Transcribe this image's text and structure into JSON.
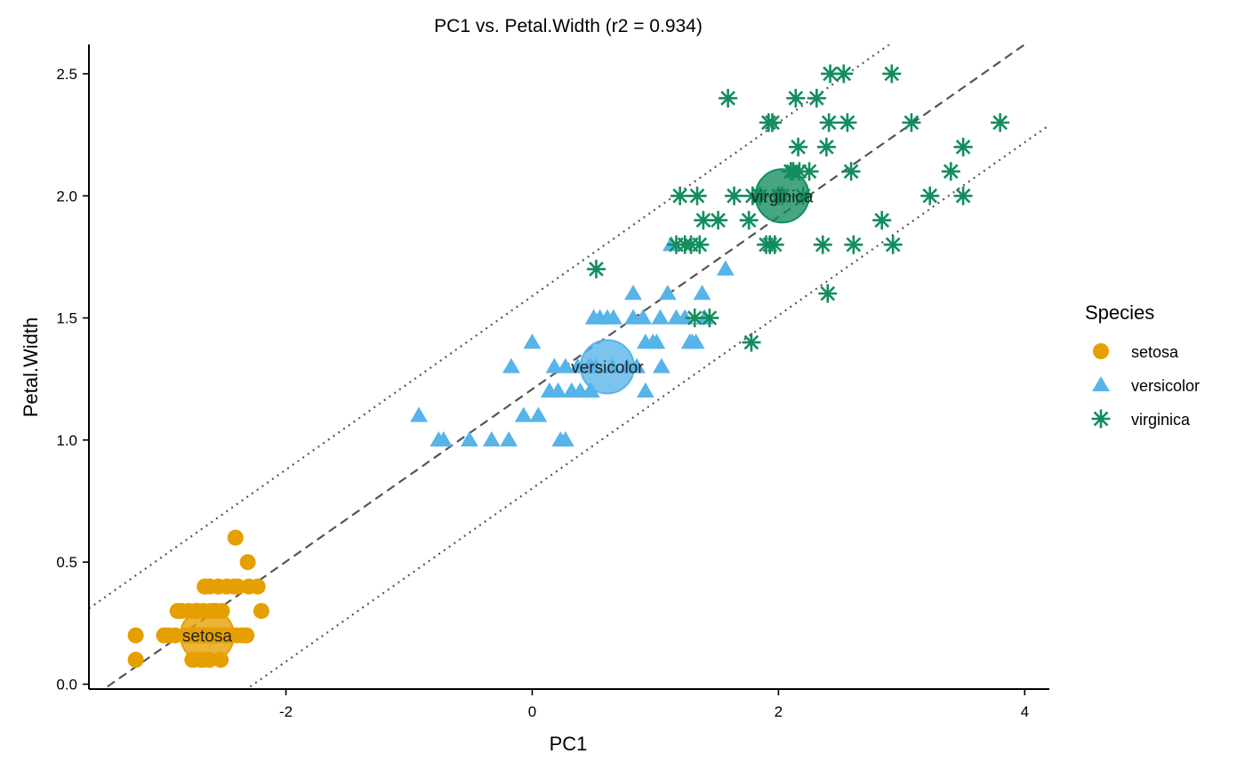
{
  "chart_data": {
    "type": "scatter",
    "title": "PC1 vs. Petal.Width (r2 = 0.934)",
    "xlabel": "PC1",
    "ylabel": "Petal.Width",
    "xlim": [
      -3.6,
      4.2
    ],
    "ylim": [
      -0.02,
      2.62
    ],
    "xticks": [
      -2,
      0,
      2,
      4
    ],
    "xtick_labels": [
      "-2",
      "0",
      "2",
      "4"
    ],
    "yticks": [
      0.0,
      0.5,
      1.0,
      1.5,
      2.0,
      2.5
    ],
    "ytick_labels": [
      "0.0",
      "0.5",
      "1.0",
      "1.5",
      "2.0",
      "2.5"
    ],
    "grid": false,
    "legend": {
      "title": "Species",
      "placement": "right"
    },
    "regression": {
      "style": "dashed",
      "color": "#555555",
      "line": [
        [
          -3.45,
          -0.01
        ],
        [
          4.0,
          2.62
        ]
      ],
      "upper_bound": [
        [
          -3.6,
          0.31
        ],
        [
          2.9,
          2.62
        ]
      ],
      "lower_bound": [
        [
          -2.29,
          -0.01
        ],
        [
          4.2,
          2.29
        ]
      ]
    },
    "series": [
      {
        "name": "setosa",
        "marker": "circle",
        "color": "#E69F00",
        "centroid": {
          "label": "setosa",
          "x": -2.64,
          "y": 0.2
        },
        "points": [
          [
            -3.22,
            0.2
          ],
          [
            -3.22,
            0.1
          ],
          [
            -2.99,
            0.2
          ],
          [
            -2.95,
            0.2
          ],
          [
            -2.85,
            0.3
          ],
          [
            -2.79,
            0.3
          ],
          [
            -2.77,
            0.2
          ],
          [
            -2.72,
            0.3
          ],
          [
            -2.71,
            0.2
          ],
          [
            -2.69,
            0.1
          ],
          [
            -2.67,
            0.3
          ],
          [
            -2.64,
            0.2
          ],
          [
            -2.61,
            0.3
          ],
          [
            -2.59,
            0.2
          ],
          [
            -2.57,
            0.3
          ],
          [
            -2.55,
            0.2
          ],
          [
            -2.52,
            0.3
          ],
          [
            -2.5,
            0.2
          ],
          [
            -2.67,
            0.1
          ],
          [
            -2.75,
            0.1
          ],
          [
            -2.62,
            0.1
          ],
          [
            -2.61,
            0.2
          ],
          [
            -2.74,
            0.2
          ],
          [
            -2.81,
            0.2
          ],
          [
            -2.48,
            0.2
          ],
          [
            -2.45,
            0.2
          ],
          [
            -2.4,
            0.2
          ],
          [
            -2.35,
            0.2
          ],
          [
            -2.32,
            0.2
          ],
          [
            -2.66,
            0.4
          ],
          [
            -2.55,
            0.4
          ],
          [
            -2.48,
            0.4
          ],
          [
            -2.42,
            0.4
          ],
          [
            -2.39,
            0.4
          ],
          [
            -2.3,
            0.4
          ],
          [
            -2.23,
            0.4
          ],
          [
            -2.2,
            0.3
          ],
          [
            -2.31,
            0.5
          ],
          [
            -2.41,
            0.6
          ],
          [
            -2.88,
            0.3
          ],
          [
            -2.7,
            0.2
          ],
          [
            -2.6,
            0.2
          ],
          [
            -2.9,
            0.2
          ],
          [
            -2.58,
            0.3
          ],
          [
            -2.65,
            0.2
          ],
          [
            -2.76,
            0.1
          ],
          [
            -2.68,
            0.2
          ],
          [
            -2.62,
            0.4
          ],
          [
            -2.53,
            0.1
          ],
          [
            -2.73,
            0.3
          ]
        ]
      },
      {
        "name": "versicolor",
        "marker": "triangle",
        "color": "#56B4E9",
        "centroid": {
          "label": "versicolor",
          "x": 0.61,
          "y": 1.3
        },
        "points": [
          [
            -0.92,
            1.1
          ],
          [
            -0.76,
            1.0
          ],
          [
            -0.72,
            1.0
          ],
          [
            -0.51,
            1.0
          ],
          [
            -0.33,
            1.0
          ],
          [
            -0.19,
            1.0
          ],
          [
            -0.17,
            1.3
          ],
          [
            0.0,
            1.4
          ],
          [
            -0.07,
            1.1
          ],
          [
            0.05,
            1.1
          ],
          [
            0.14,
            1.2
          ],
          [
            0.18,
            1.3
          ],
          [
            0.21,
            1.2
          ],
          [
            0.23,
            1.0
          ],
          [
            0.27,
            1.0
          ],
          [
            0.27,
            1.3
          ],
          [
            0.32,
            1.2
          ],
          [
            0.37,
            1.3
          ],
          [
            0.39,
            1.2
          ],
          [
            0.46,
            1.3
          ],
          [
            0.48,
            1.2
          ],
          [
            0.48,
            1.3
          ],
          [
            0.47,
            1.2
          ],
          [
            0.52,
            1.3
          ],
          [
            0.5,
            1.5
          ],
          [
            0.55,
            1.5
          ],
          [
            0.61,
            1.5
          ],
          [
            0.66,
            1.5
          ],
          [
            0.65,
            1.3
          ],
          [
            0.77,
            1.3
          ],
          [
            0.82,
            1.6
          ],
          [
            0.82,
            1.5
          ],
          [
            0.85,
            1.3
          ],
          [
            0.9,
            1.5
          ],
          [
            0.92,
            1.4
          ],
          [
            0.92,
            1.2
          ],
          [
            0.98,
            1.4
          ],
          [
            1.01,
            1.4
          ],
          [
            1.04,
            1.5
          ],
          [
            1.05,
            1.3
          ],
          [
            1.1,
            1.6
          ],
          [
            1.24,
            1.5
          ],
          [
            1.13,
            1.8
          ],
          [
            1.28,
            1.4
          ],
          [
            1.3,
            1.4
          ],
          [
            1.33,
            1.4
          ],
          [
            1.38,
            1.6
          ],
          [
            1.4,
            1.5
          ],
          [
            1.57,
            1.7
          ],
          [
            1.17,
            1.5
          ]
        ]
      },
      {
        "name": "virginica",
        "marker": "asterisk",
        "color": "#138D5E",
        "centroid": {
          "label": "virginica",
          "x": 2.03,
          "y": 2.0
        },
        "points": [
          [
            0.52,
            1.7
          ],
          [
            1.17,
            1.8
          ],
          [
            1.2,
            2.0
          ],
          [
            1.24,
            1.8
          ],
          [
            1.29,
            1.8
          ],
          [
            1.32,
            1.5
          ],
          [
            1.34,
            2.0
          ],
          [
            1.36,
            1.8
          ],
          [
            1.39,
            1.9
          ],
          [
            1.44,
            1.5
          ],
          [
            1.51,
            1.9
          ],
          [
            1.59,
            2.4
          ],
          [
            1.64,
            2.0
          ],
          [
            1.76,
            1.9
          ],
          [
            1.78,
            1.4
          ],
          [
            1.79,
            2.0
          ],
          [
            1.85,
            2.0
          ],
          [
            1.9,
            1.8
          ],
          [
            1.92,
            2.3
          ],
          [
            1.93,
            1.8
          ],
          [
            1.95,
            2.3
          ],
          [
            1.97,
            1.8
          ],
          [
            2.0,
            2.0
          ],
          [
            2.03,
            2.0
          ],
          [
            2.1,
            2.1
          ],
          [
            2.14,
            2.4
          ],
          [
            2.16,
            2.2
          ],
          [
            2.17,
            2.1
          ],
          [
            2.25,
            2.1
          ],
          [
            2.31,
            2.4
          ],
          [
            2.36,
            1.8
          ],
          [
            2.39,
            2.2
          ],
          [
            2.4,
            1.6
          ],
          [
            2.41,
            2.3
          ],
          [
            2.42,
            2.5
          ],
          [
            2.53,
            2.5
          ],
          [
            2.56,
            2.3
          ],
          [
            2.59,
            2.1
          ],
          [
            2.61,
            1.8
          ],
          [
            2.84,
            1.9
          ],
          [
            2.92,
            2.5
          ],
          [
            2.93,
            1.8
          ],
          [
            3.08,
            2.3
          ],
          [
            3.23,
            2.0
          ],
          [
            3.4,
            2.1
          ],
          [
            3.5,
            2.2
          ],
          [
            3.5,
            2.0
          ],
          [
            3.8,
            2.3
          ],
          [
            2.2,
            2.0
          ],
          [
            2.12,
            2.1
          ]
        ]
      }
    ]
  }
}
